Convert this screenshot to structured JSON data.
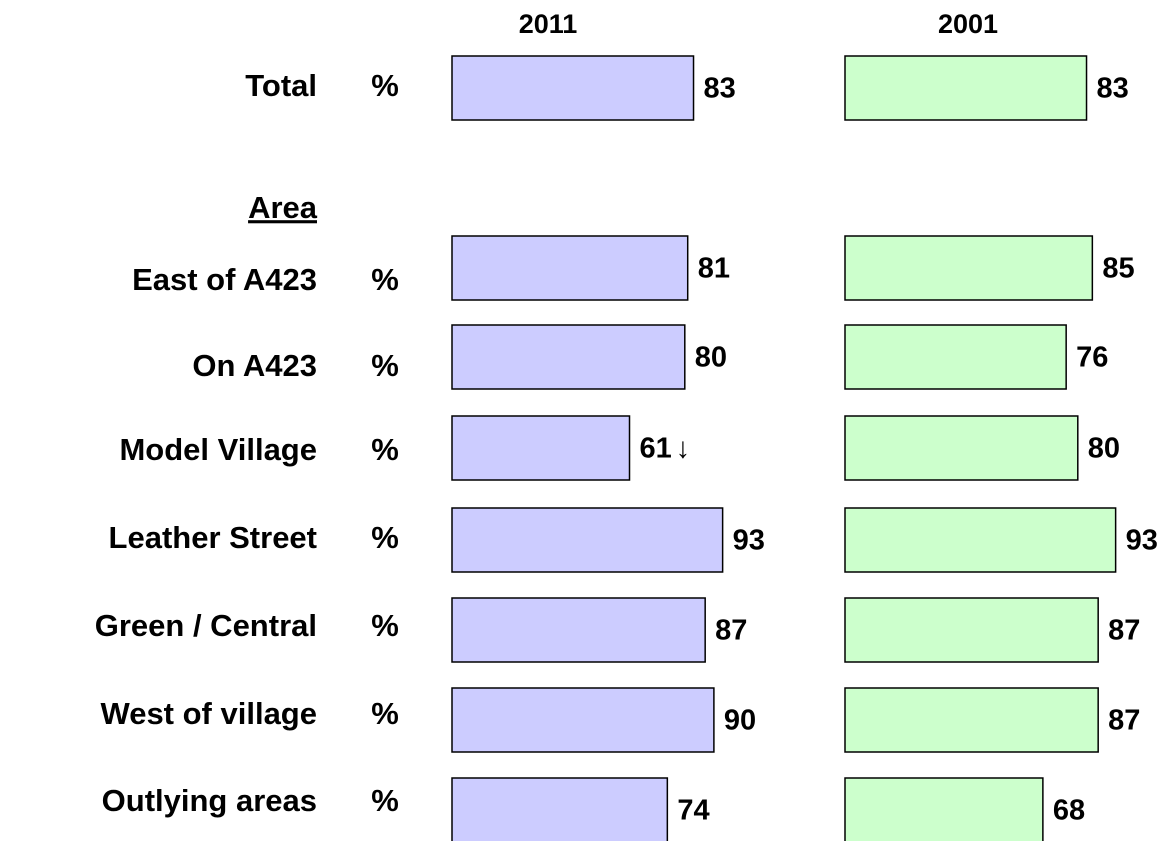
{
  "chart_data": {
    "type": "bar",
    "orientation": "horizontal",
    "group_label": "Area",
    "unit_label": "%",
    "categories": [
      "Total",
      "East of A423",
      "On A423",
      "Model Village",
      "Leather Street",
      "Green / Central",
      "West of village",
      "Outlying areas"
    ],
    "series": [
      {
        "name": "2011",
        "color": "#ccccff",
        "values": [
          83,
          81,
          80,
          61,
          93,
          87,
          90,
          74
        ]
      },
      {
        "name": "2001",
        "color": "#ccffcc",
        "values": [
          83,
          85,
          76,
          80,
          93,
          87,
          87,
          68
        ]
      }
    ],
    "xlim": [
      0,
      100
    ],
    "annotations": [
      {
        "text": "↓",
        "series": 0,
        "index": 3
      }
    ]
  }
}
